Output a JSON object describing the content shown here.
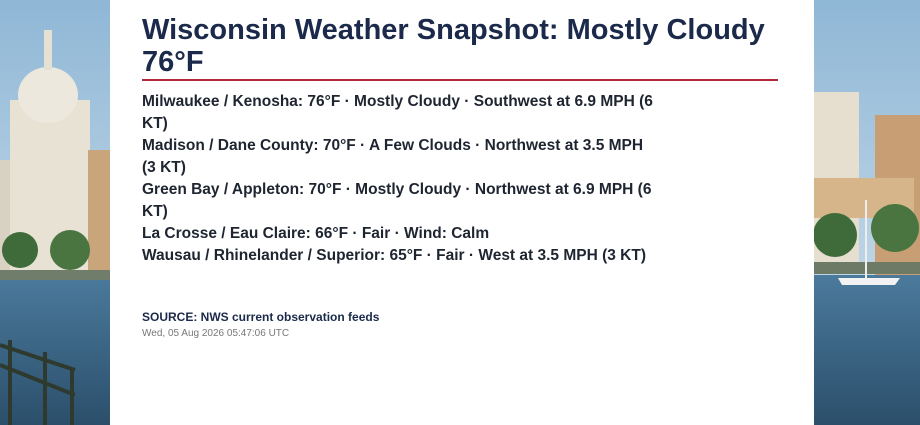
{
  "header": {
    "title": "Wisconsin Weather Snapshot: Mostly Cloudy 76°F"
  },
  "observations": [
    "Milwaukee / Kenosha: 76°F · Mostly Cloudy · Southwest at 6.9 MPH (6 KT)",
    "Madison / Dane County: 70°F · A Few Clouds · Northwest at 3.5 MPH (3 KT)",
    "Green Bay / Appleton: 70°F · Mostly Cloudy · Northwest at 6.9 MPH (6 KT)",
    "La Crosse / Eau Claire: 66°F · Fair · Wind: Calm",
    "Wausau / Rhinelander / Superior: 65°F · Fair · West at 3.5 MPH (3 KT)"
  ],
  "footer": {
    "source": "SOURCE: NWS current observation feeds",
    "timestamp": "Wed, 05 Aug 2026 05:47:06 UTC"
  }
}
